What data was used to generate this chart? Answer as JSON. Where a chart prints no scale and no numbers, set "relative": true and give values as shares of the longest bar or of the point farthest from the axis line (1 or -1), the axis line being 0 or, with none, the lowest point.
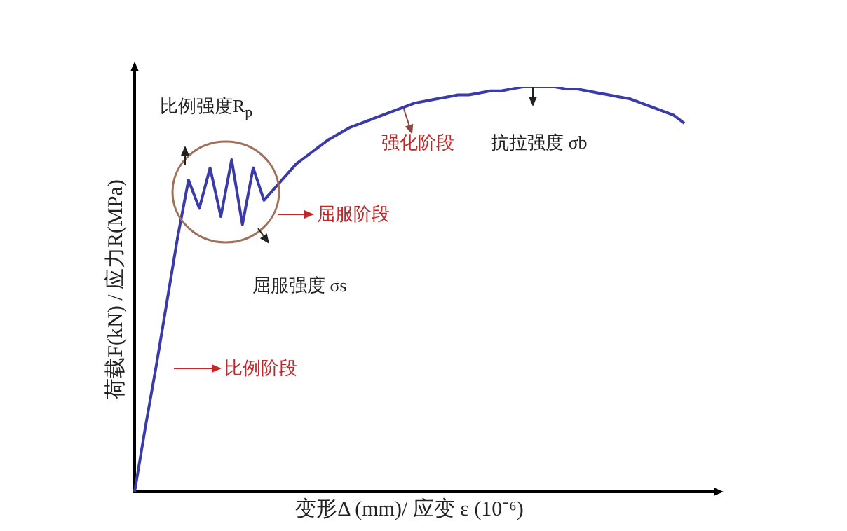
{
  "chart_data": {
    "type": "line",
    "relative": true,
    "color": "#3a3aa8",
    "marker": "none",
    "line_style": "solid",
    "grid": false,
    "legend": false,
    "xlabel": "变形Δ (mm)/ 应变 ε (10⁻⁶)",
    "ylabel": "荷载F(kN) / 应力R(MPa)",
    "categories": [
      null,
      null,
      null,
      null,
      null,
      null,
      null,
      null,
      null,
      null,
      null,
      null,
      null,
      null,
      null,
      null,
      null,
      null,
      null,
      null,
      null,
      null,
      null,
      null,
      null,
      null,
      null,
      null,
      null,
      null,
      null,
      null,
      null,
      null,
      null,
      null,
      null,
      null,
      null,
      null,
      null,
      null,
      null,
      null,
      null,
      null,
      null,
      null,
      null,
      null,
      null,
      null
    ],
    "values": [
      0,
      0.16,
      0.31,
      0.47,
      0.63,
      0.77,
      0.7,
      0.8,
      0.68,
      0.82,
      0.66,
      0.8,
      0.72,
      0.75,
      0.78,
      0.81,
      0.83,
      0.85,
      0.87,
      0.885,
      0.9,
      0.91,
      0.92,
      0.93,
      0.94,
      0.95,
      0.96,
      0.965,
      0.97,
      0.975,
      0.98,
      0.98,
      0.985,
      0.99,
      0.99,
      0.995,
      1,
      1,
      1,
      1,
      0.995,
      0.995,
      0.99,
      0.985,
      0.98,
      0.975,
      0.97,
      0.96,
      0.95,
      0.94,
      0.93,
      0.91
    ],
    "annotations": [
      "比例强度R$_{p}$",
      "强化阶段",
      "屈服阶段",
      "屈服强度 σs",
      "抗拉强度 σb",
      "比例阶段"
    ]
  }
}
